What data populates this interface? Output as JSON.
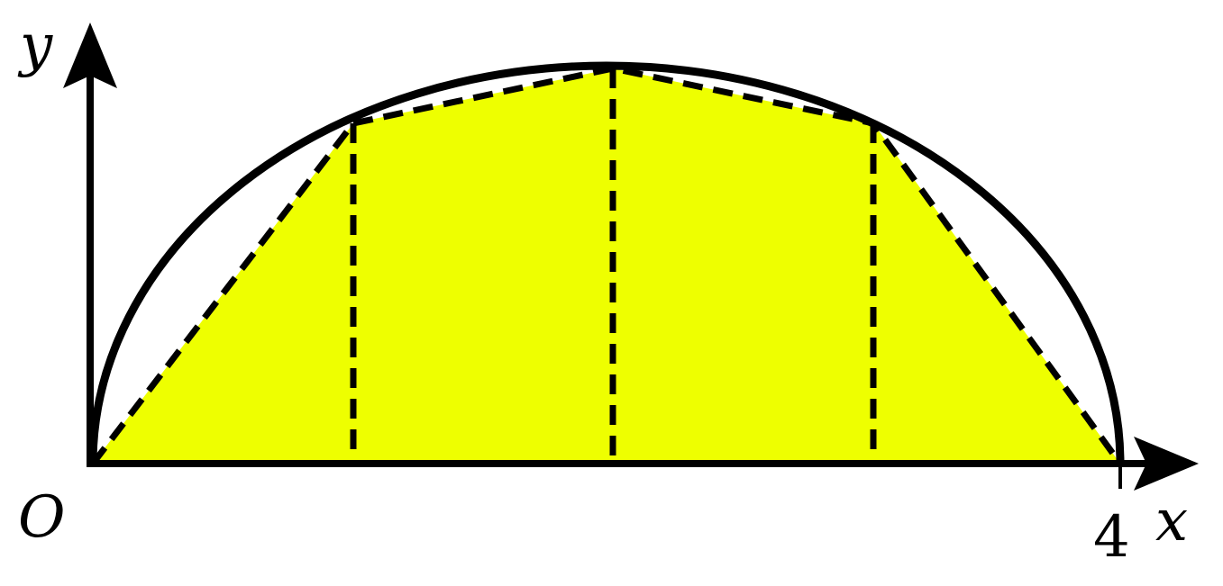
{
  "figure": {
    "fill_color": "#eeff00",
    "line_color": "#000000",
    "labels": {
      "y_axis": "y",
      "x_axis": "x",
      "origin": "O",
      "x_end_tick": "4"
    },
    "domain": [
      0,
      4
    ],
    "partition_points": [
      0,
      1,
      2,
      3,
      4
    ]
  }
}
